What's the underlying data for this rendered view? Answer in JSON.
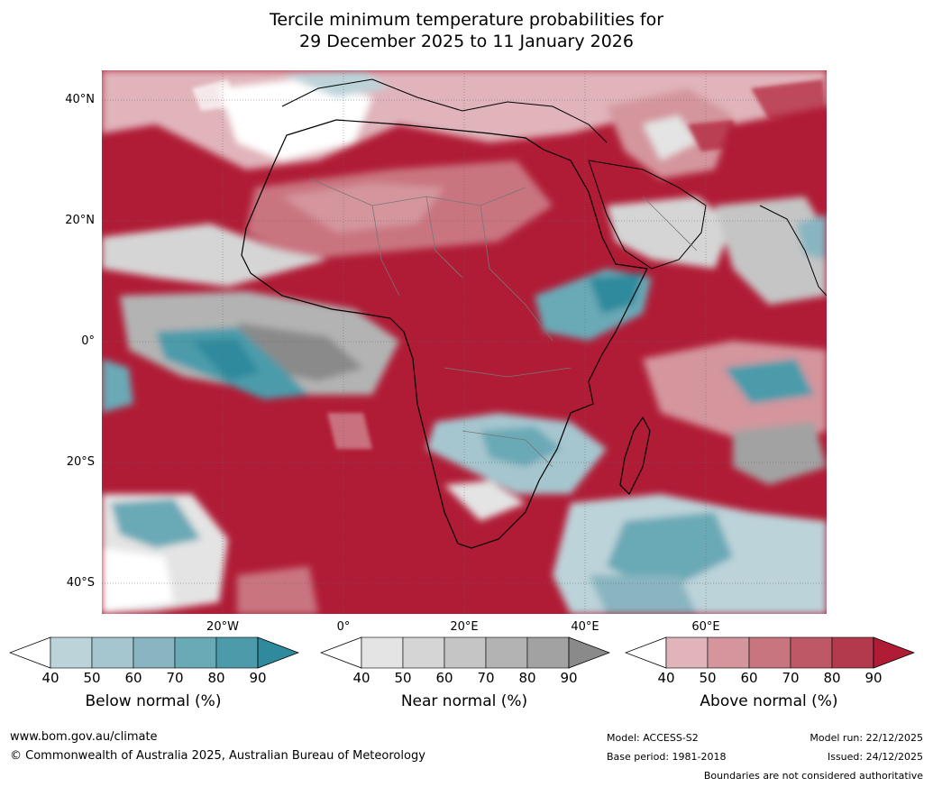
{
  "title": {
    "line1": "Tercile minimum temperature probabilities for",
    "line2": "29 December 2025 to 11 January 2026"
  },
  "lat_labels": [
    "40°N",
    "20°N",
    "0°",
    "20°S",
    "40°S"
  ],
  "lon_labels": [
    "20°W",
    "0°",
    "20°E",
    "40°E",
    "60°E"
  ],
  "colorbars": [
    {
      "name": "below",
      "title": "Below normal (%)",
      "ticks": [
        "40",
        "50",
        "60",
        "70",
        "80",
        "90"
      ],
      "colors": [
        "#ffffff",
        "#bcd3d9",
        "#a6c6cf",
        "#88b5c1",
        "#6aa9b6",
        "#4b9bab",
        "#2e8a9c"
      ]
    },
    {
      "name": "near",
      "title": "Near normal (%)",
      "ticks": [
        "40",
        "50",
        "60",
        "70",
        "80",
        "90"
      ],
      "colors": [
        "#ffffff",
        "#e4e4e4",
        "#d5d5d5",
        "#c5c5c5",
        "#b3b3b3",
        "#a2a2a2",
        "#8a8a8a"
      ]
    },
    {
      "name": "above",
      "title": "Above normal (%)",
      "ticks": [
        "40",
        "50",
        "60",
        "70",
        "80",
        "90"
      ],
      "colors": [
        "#ffffff",
        "#e0b4ba",
        "#d4959d",
        "#c97580",
        "#bd5866",
        "#b23a4c",
        "#b01c36"
      ]
    }
  ],
  "footer": {
    "url": "www.bom.gov.au/climate",
    "copyright": "© Commonwealth of Australia 2025, Australian Bureau of Meteorology",
    "model": "Model: ACCESS-S2",
    "base_period": "Base period: 1981-2018",
    "model_run": "Model run: 22/12/2025",
    "issued": "Issued: 24/12/2025",
    "disclaimer": "Boundaries are not considered authoritative"
  }
}
